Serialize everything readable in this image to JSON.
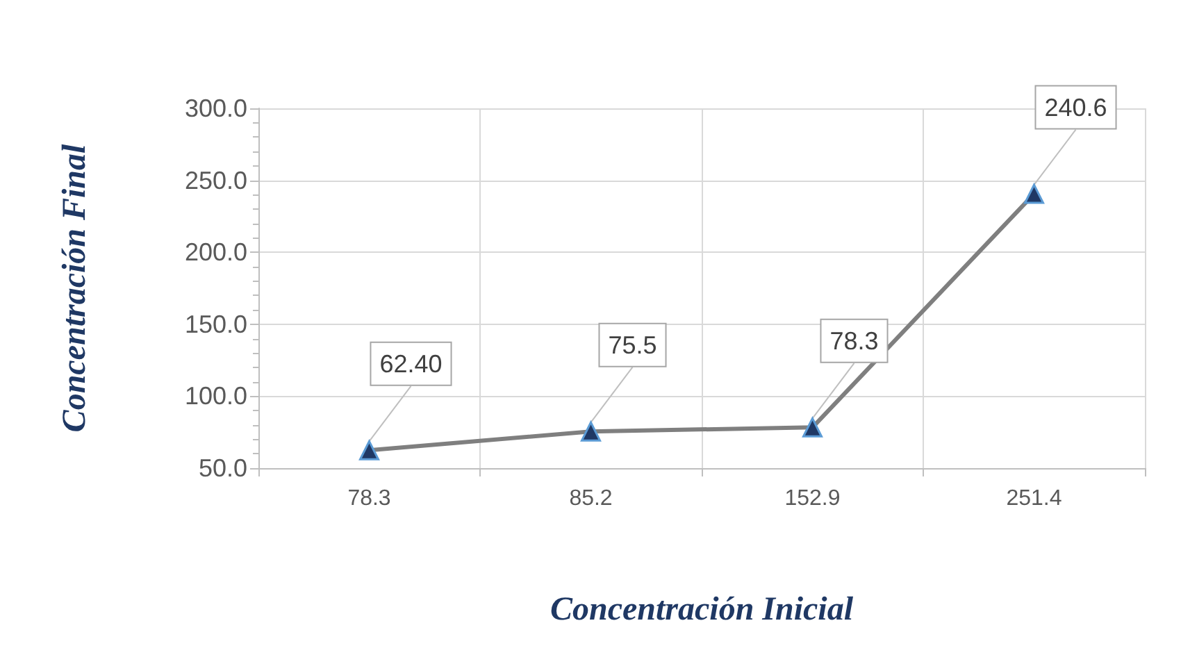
{
  "chart_data": {
    "type": "line",
    "xlabel": "Concentración Inicial",
    "ylabel": "Concentración Final",
    "categories": [
      "78.3",
      "85.2",
      "152.9",
      "251.4"
    ],
    "series": [
      {
        "color": "#7f7f7f",
        "values": [
          62.4,
          75.5,
          78.3,
          240.6
        ],
        "value_labels": [
          "62.40",
          "75.5",
          "78.3",
          "240.6"
        ]
      }
    ],
    "ylim": [
      50,
      300
    ],
    "yticks": [
      {
        "value": 50,
        "label": "50.0"
      },
      {
        "value": 100,
        "label": "100.0"
      },
      {
        "value": 150,
        "label": "150.0"
      },
      {
        "value": 200,
        "label": "200.0"
      },
      {
        "value": 250,
        "label": "250.0"
      },
      {
        "value": 300,
        "label": "300.0"
      }
    ],
    "grid": true,
    "marker": "triangle",
    "line_style": "solid"
  }
}
